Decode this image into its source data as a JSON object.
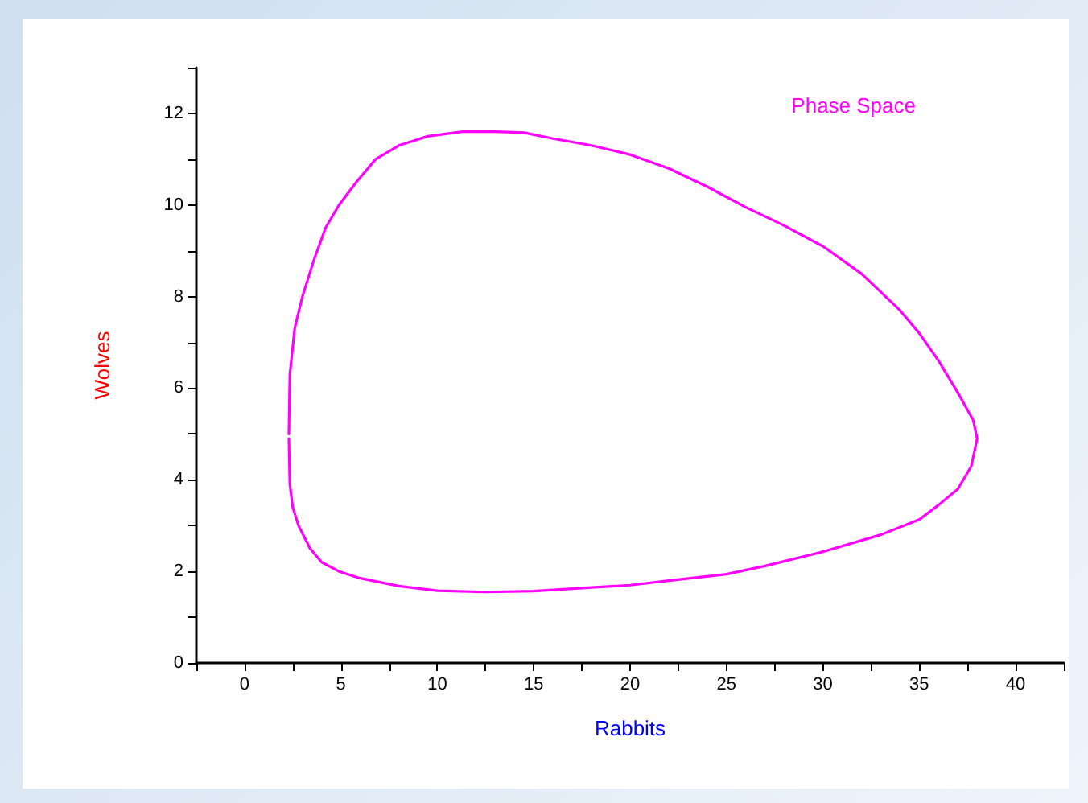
{
  "chart_data": {
    "type": "line",
    "title": "Phase Space",
    "xlabel": "Rabbits",
    "ylabel": "Wolves",
    "xlim": [
      -2.5,
      42.5
    ],
    "ylim": [
      0,
      13
    ],
    "xticks": [
      {
        "value": -2.5,
        "label": null
      },
      0,
      {
        "value": 2.5,
        "label": null
      },
      5,
      {
        "value": 7.5,
        "label": null
      },
      10,
      {
        "value": 12.5,
        "label": null
      },
      15,
      {
        "value": 17.5,
        "label": null
      },
      20,
      {
        "value": 22.5,
        "label": null
      },
      25,
      {
        "value": 27.5,
        "label": null
      },
      30,
      {
        "value": 32.5,
        "label": null
      },
      35,
      {
        "value": 37.5,
        "label": null
      },
      40,
      {
        "value": 42.5,
        "label": null
      }
    ],
    "yticks": [
      0,
      {
        "value": 1,
        "label": null
      },
      2,
      {
        "value": 3,
        "label": null
      },
      4,
      {
        "value": 5,
        "label": null
      },
      6,
      {
        "value": 7,
        "label": null
      },
      8,
      {
        "value": 9,
        "label": null
      },
      10,
      {
        "value": 11,
        "label": null
      },
      12,
      {
        "value": 13,
        "label": null
      }
    ],
    "grid": false,
    "marker": "none",
    "line_style": "solid",
    "series": [
      {
        "color": "#ff00ff",
        "x": [
          2.3,
          2.35,
          2.6,
          3.0,
          3.6,
          4.2,
          4.9,
          5.8,
          6.8,
          8.0,
          9.5,
          11.3,
          13,
          14.5,
          16,
          18,
          20,
          22,
          24,
          26,
          28,
          30,
          32,
          34,
          35,
          36,
          37,
          37.8,
          38.0,
          37.7,
          37,
          36,
          35,
          33,
          30,
          27,
          25,
          22,
          20,
          18,
          15,
          12.5,
          10,
          8,
          6,
          4.9,
          4,
          3.4,
          2.8,
          2.5,
          2.35,
          2.3
        ],
        "values": [
          5,
          6.3,
          7.3,
          8.0,
          8.8,
          9.5,
          10.0,
          10.5,
          11.0,
          11.3,
          11.5,
          11.6,
          11.6,
          11.58,
          11.45,
          11.3,
          11.1,
          10.8,
          10.4,
          9.95,
          9.55,
          9.1,
          8.5,
          7.7,
          7.2,
          6.6,
          5.9,
          5.3,
          4.9,
          4.3,
          3.8,
          3.45,
          3.13,
          2.8,
          2.43,
          2.12,
          1.94,
          1.8,
          1.7,
          1.65,
          1.57,
          1.55,
          1.58,
          1.68,
          1.85,
          2.0,
          2.2,
          2.5,
          3.0,
          3.4,
          3.9,
          4.9
        ]
      }
    ]
  }
}
